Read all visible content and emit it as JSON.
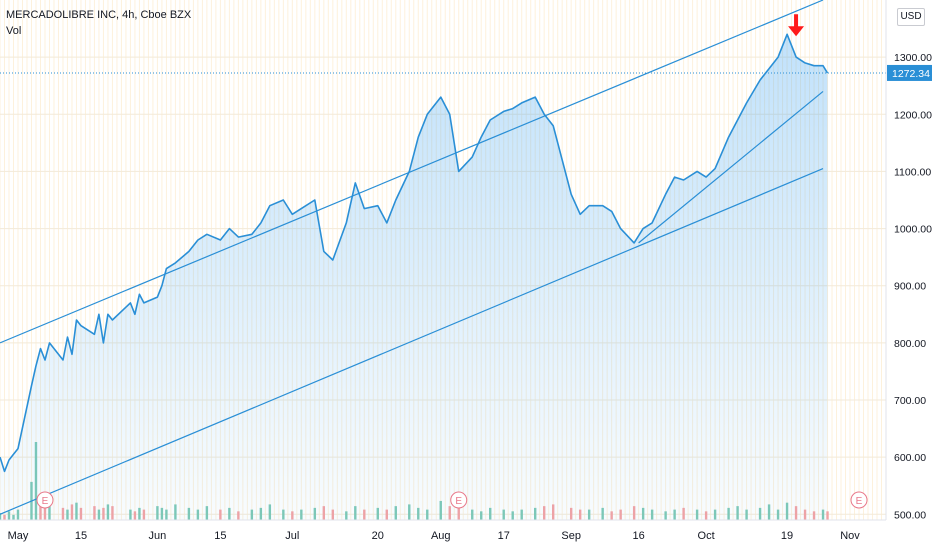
{
  "header": {
    "symbol_line": "MERCADOLIBRE INC, 4h, Cboe BZX",
    "indicator": "Vol",
    "currency": "USD"
  },
  "colors": {
    "line": "#2a8fd6",
    "area_top": "#2196f3",
    "trend": "#2a8fd6",
    "grid": "#fdf1dc",
    "vol_up": "#7fc9b5",
    "vol_down": "#f4a3a3",
    "arrow": "#ff1a1a",
    "price_label_bg": "#2a8fd6"
  },
  "chart_data": {
    "type": "area",
    "title": "MERCADOLIBRE INC, 4h, Cboe BZX",
    "y_axis": {
      "ylim": [
        490,
        1400
      ],
      "ticks": [
        "500.00",
        "600.00",
        "700.00",
        "800.00",
        "900.00",
        "1000.00",
        "1100.00",
        "1200.00",
        "1300.00"
      ],
      "tick_values": [
        500,
        600,
        700,
        800,
        900,
        1000,
        1100,
        1200,
        1300
      ]
    },
    "x_axis": {
      "tick_labels": [
        "May",
        "15",
        "Jun",
        "15",
        "Jul",
        "20",
        "Aug",
        "17",
        "Sep",
        "16",
        "Oct",
        "19",
        "Nov"
      ],
      "tick_dates": [
        "2020-05-01",
        "2020-05-15",
        "2020-06-01",
        "2020-06-15",
        "2020-07-01",
        "2020-07-20",
        "2020-08-03",
        "2020-08-17",
        "2020-09-01",
        "2020-09-16",
        "2020-10-01",
        "2020-10-19",
        "2020-11-02"
      ],
      "xlim": [
        "2020-04-27",
        "2020-11-10"
      ]
    },
    "last_price": "1272.34",
    "last_price_value": 1272.34,
    "series": [
      {
        "x": [
          "2020-04-27",
          "2020-04-28",
          "2020-04-29",
          "2020-04-30",
          "2020-05-01",
          "2020-05-04",
          "2020-05-05",
          "2020-05-06",
          "2020-05-07",
          "2020-05-08",
          "2020-05-11",
          "2020-05-12",
          "2020-05-13",
          "2020-05-14",
          "2020-05-15",
          "2020-05-18",
          "2020-05-19",
          "2020-05-20",
          "2020-05-21",
          "2020-05-22",
          "2020-05-26",
          "2020-05-27",
          "2020-05-28",
          "2020-05-29",
          "2020-06-01",
          "2020-06-02",
          "2020-06-03",
          "2020-06-05",
          "2020-06-08",
          "2020-06-10",
          "2020-06-12",
          "2020-06-15",
          "2020-06-17",
          "2020-06-19",
          "2020-06-22",
          "2020-06-24",
          "2020-06-26",
          "2020-06-29",
          "2020-07-01",
          "2020-07-03",
          "2020-07-06",
          "2020-07-08",
          "2020-07-10",
          "2020-07-13",
          "2020-07-15",
          "2020-07-17",
          "2020-07-20",
          "2020-07-22",
          "2020-07-24",
          "2020-07-27",
          "2020-07-29",
          "2020-07-31",
          "2020-08-03",
          "2020-08-05",
          "2020-08-07",
          "2020-08-10",
          "2020-08-12",
          "2020-08-14",
          "2020-08-17",
          "2020-08-19",
          "2020-08-21",
          "2020-08-24",
          "2020-08-26",
          "2020-08-28",
          "2020-09-01",
          "2020-09-03",
          "2020-09-05",
          "2020-09-08",
          "2020-09-10",
          "2020-09-12",
          "2020-09-15",
          "2020-09-17",
          "2020-09-19",
          "2020-09-22",
          "2020-09-24",
          "2020-09-26",
          "2020-09-29",
          "2020-10-01",
          "2020-10-03",
          "2020-10-06",
          "2020-10-08",
          "2020-10-10",
          "2020-10-13",
          "2020-10-15",
          "2020-10-17",
          "2020-10-19",
          "2020-10-21",
          "2020-10-23",
          "2020-10-25",
          "2020-10-27",
          "2020-10-28"
        ],
        "values": [
          600,
          575,
          595,
          605,
          615,
          725,
          760,
          790,
          770,
          800,
          770,
          810,
          780,
          840,
          830,
          815,
          850,
          800,
          850,
          840,
          870,
          850,
          885,
          870,
          880,
          900,
          930,
          940,
          960,
          980,
          990,
          980,
          1000,
          985,
          990,
          1010,
          1040,
          1050,
          1025,
          1035,
          1050,
          960,
          945,
          1010,
          1080,
          1035,
          1040,
          1010,
          1050,
          1100,
          1160,
          1200,
          1230,
          1200,
          1100,
          1125,
          1160,
          1190,
          1205,
          1210,
          1220,
          1230,
          1200,
          1180,
          1060,
          1025,
          1040,
          1040,
          1030,
          1000,
          975,
          1000,
          1010,
          1060,
          1090,
          1085,
          1100,
          1090,
          1105,
          1160,
          1190,
          1220,
          1260,
          1280,
          1300,
          1340,
          1300,
          1290,
          1285,
          1285,
          1272
        ]
      }
    ],
    "volume": {
      "note": "relative volume bars",
      "values": [
        4,
        3,
        5,
        3,
        6,
        22,
        45,
        12,
        9,
        8,
        7,
        6,
        9,
        10,
        7,
        8,
        6,
        7,
        9,
        8,
        6,
        5,
        7,
        6,
        8,
        7,
        6,
        9,
        7,
        6,
        8,
        6,
        7,
        5,
        6,
        7,
        9,
        6,
        5,
        6,
        7,
        8,
        6,
        5,
        8,
        6,
        7,
        6,
        8,
        9,
        7,
        6,
        11,
        8,
        7,
        6,
        5,
        7,
        6,
        5,
        6,
        7,
        8,
        9,
        7,
        6,
        6,
        7,
        5,
        6,
        8,
        7,
        6,
        5,
        6,
        7,
        6,
        5,
        6,
        7,
        8,
        6,
        7,
        9,
        6,
        10,
        8,
        6,
        5,
        6,
        5
      ],
      "up": [
        1,
        0,
        1,
        1,
        1,
        1,
        1,
        0,
        0,
        1,
        0,
        1,
        0,
        1,
        0,
        0,
        1,
        0,
        1,
        0,
        1,
        0,
        1,
        0,
        1,
        1,
        1,
        1,
        1,
        1,
        1,
        0,
        1,
        0,
        1,
        1,
        1,
        1,
        0,
        1,
        1,
        0,
        0,
        1,
        1,
        0,
        1,
        0,
        1,
        1,
        1,
        1,
        1,
        0,
        0,
        1,
        1,
        1,
        1,
        1,
        1,
        1,
        0,
        0,
        0,
        0,
        1,
        1,
        0,
        0,
        0,
        1,
        1,
        1,
        1,
        0,
        1,
        0,
        1,
        1,
        1,
        1,
        1,
        1,
        1,
        1,
        0,
        0,
        0,
        1,
        0
      ]
    },
    "trendlines": [
      {
        "from": [
          "2020-04-27",
          800
        ],
        "to": [
          "2020-10-27",
          1400
        ]
      },
      {
        "from": [
          "2020-04-27",
          500
        ],
        "to": [
          "2020-10-27",
          1105
        ]
      },
      {
        "from": [
          "2020-09-16",
          975
        ],
        "to": [
          "2020-10-27",
          1240
        ]
      }
    ],
    "earnings_markers": [
      "E",
      "E",
      "E"
    ],
    "earnings_dates": [
      "2020-05-07",
      "2020-08-07",
      "2020-11-04"
    ],
    "annotation_arrow_date": "2020-10-21",
    "annotation_arrow_value": 1340,
    "grid": true,
    "legend": "none"
  }
}
